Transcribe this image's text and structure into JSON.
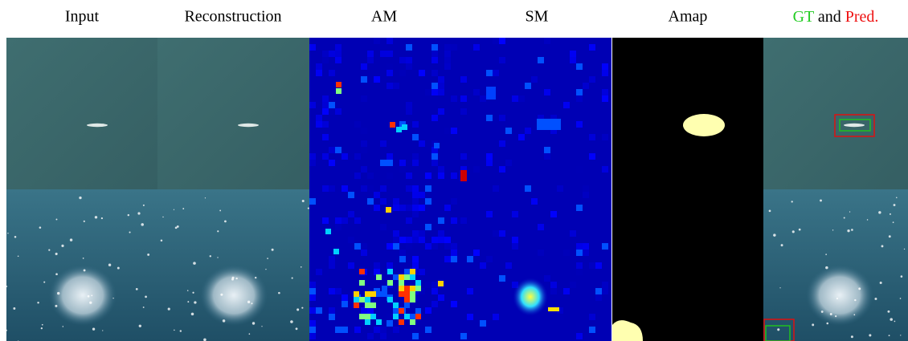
{
  "headers": [
    "Input",
    "Reconstruction",
    "AM",
    "SM",
    "Amap"
  ],
  "last_header": {
    "gt": "GT",
    "and": "and",
    "pred": "Pred."
  }
}
